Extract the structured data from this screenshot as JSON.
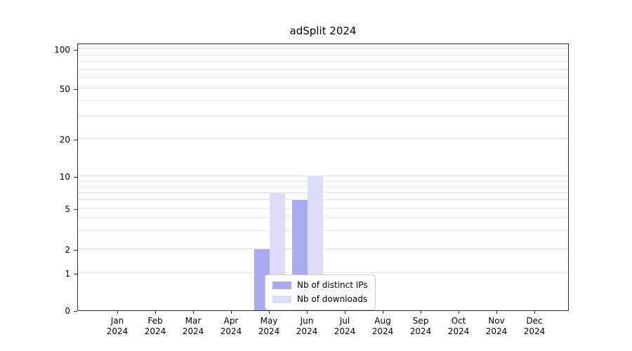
{
  "chart_data": {
    "type": "bar",
    "title": "adSplit 2024",
    "xlabel": "",
    "ylabel": "",
    "categories": [
      "Jan 2024",
      "Feb 2024",
      "Mar 2024",
      "Apr 2024",
      "May 2024",
      "Jun 2024",
      "Jul 2024",
      "Aug 2024",
      "Sep 2024",
      "Oct 2024",
      "Nov 2024",
      "Dec 2024"
    ],
    "series": [
      {
        "name": "Nb of distinct IPs",
        "color": "#aaaaee",
        "values": [
          0,
          0,
          0,
          0,
          2,
          6,
          0,
          0,
          0,
          0,
          0,
          0
        ]
      },
      {
        "name": "Nb of downloads",
        "color": "#ddddfa",
        "values": [
          0,
          0,
          0,
          0,
          7,
          10,
          0,
          0,
          0,
          0,
          0,
          0
        ]
      }
    ],
    "yticks": [
      0,
      1,
      2,
      5,
      10,
      20,
      50,
      100
    ],
    "yscale": "symlog",
    "ylim": [
      0,
      110
    ],
    "grid": true,
    "legend_position": "lower center"
  }
}
